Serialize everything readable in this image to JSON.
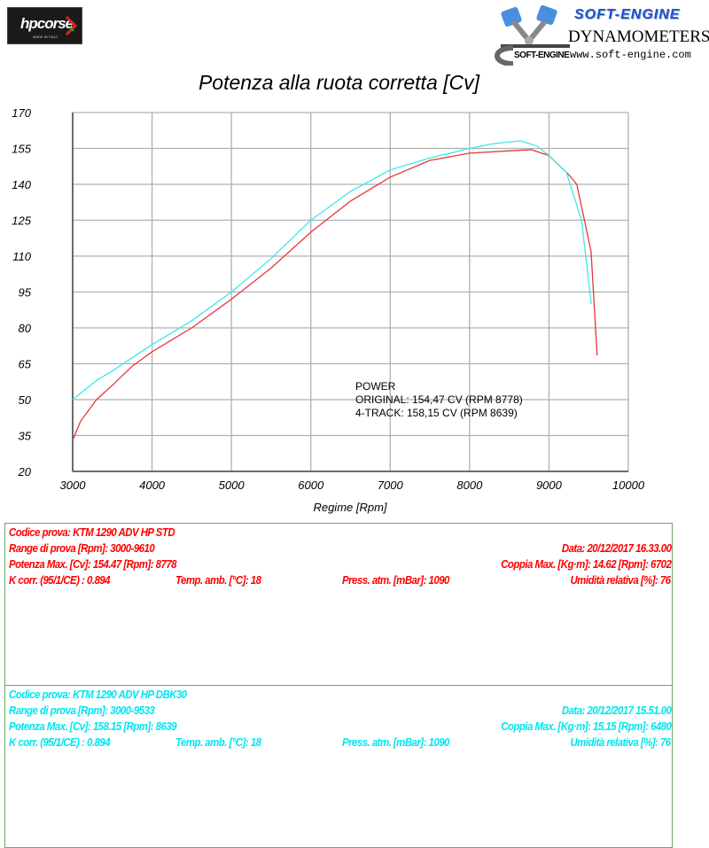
{
  "header": {
    "left_logo": {
      "text": "hpcorse",
      "subtext": "MADE IN ITALY"
    },
    "right_logo": {
      "title": "SOFT-ENGINE",
      "subtitle": "DYNAMOMETERS",
      "url": "www.soft-engine.com",
      "mark": "SOFT-ENGINE"
    }
  },
  "chart_data": {
    "type": "line",
    "title": "Potenza alla ruota corretta [Cv]",
    "xlabel": "Regime [Rpm]",
    "ylabel": "",
    "xlim": [
      3000,
      10000
    ],
    "ylim": [
      20,
      170
    ],
    "xticks": [
      3000,
      4000,
      5000,
      6000,
      7000,
      8000,
      9000,
      10000
    ],
    "yticks": [
      20,
      35,
      50,
      65,
      80,
      95,
      110,
      125,
      140,
      155,
      170
    ],
    "grid": true,
    "annotation": [
      "POWER",
      "ORIGINAL: 154,47 CV (RPM 8778)",
      "4-TRACK: 158,15 CV (RPM 8639)"
    ],
    "series": [
      {
        "color": "#e8343a",
        "x": [
          3000,
          3100,
          3300,
          3500,
          3750,
          4000,
          4500,
          5000,
          5500,
          6000,
          6500,
          7000,
          7500,
          8000,
          8500,
          8778,
          9000,
          9250,
          9350,
          9530,
          9607
        ],
        "y": [
          33,
          41,
          50,
          56,
          64,
          70,
          80,
          92,
          105,
          120,
          133,
          143,
          150,
          153,
          154,
          154.47,
          152,
          144,
          140,
          112,
          68.5
        ]
      },
      {
        "color": "#3ee8e8",
        "x": [
          3000,
          3300,
          3500,
          4000,
          4500,
          5000,
          5500,
          6000,
          6500,
          7000,
          7500,
          8000,
          8300,
          8639,
          8850,
          9000,
          9220,
          9410,
          9533
        ],
        "y": [
          50,
          58,
          62,
          73,
          83,
          95,
          109,
          125,
          137,
          146,
          151,
          155,
          157,
          158.15,
          156,
          152,
          145,
          125,
          90
        ]
      }
    ]
  },
  "tests": [
    {
      "color": "#ff0000",
      "code": "Codice prova: KTM 1290 ADV HP STD",
      "range": "Range di prova [Rpm]: 3000-9610",
      "date": "Data: 20/12/2017   16.33.00",
      "power_max": "Potenza Max. [Cv]: 154.47   [Rpm]: 8778",
      "torque_max": "Coppia Max. [Kg·m]: 14.62   [Rpm]: 6702",
      "kcorr": "K corr. (95/1/CE) : 0.894",
      "temp": "Temp. amb. [°C]: 18",
      "press": "Press. atm. [mBar]: 1090",
      "humidity": "Umidità relativa [%]: 76"
    },
    {
      "color": "#00e5ee",
      "code": "Codice prova: KTM 1290 ADV HP DBK30",
      "range": "Range di prova [Rpm]: 3000-9533",
      "date": "Data: 20/12/2017   15.51.00",
      "power_max": "Potenza Max. [Cv]: 158.15   [Rpm]: 8639",
      "torque_max": "Coppia Max. [Kg·m]: 15.15   [Rpm]: 6480",
      "kcorr": "K corr. (95/1/CE) : 0.894",
      "temp": "Temp. amb. [°C]: 18",
      "press": "Press. atm. [mBar]: 1090",
      "humidity": "Umidità relativa [%]: 76"
    }
  ]
}
